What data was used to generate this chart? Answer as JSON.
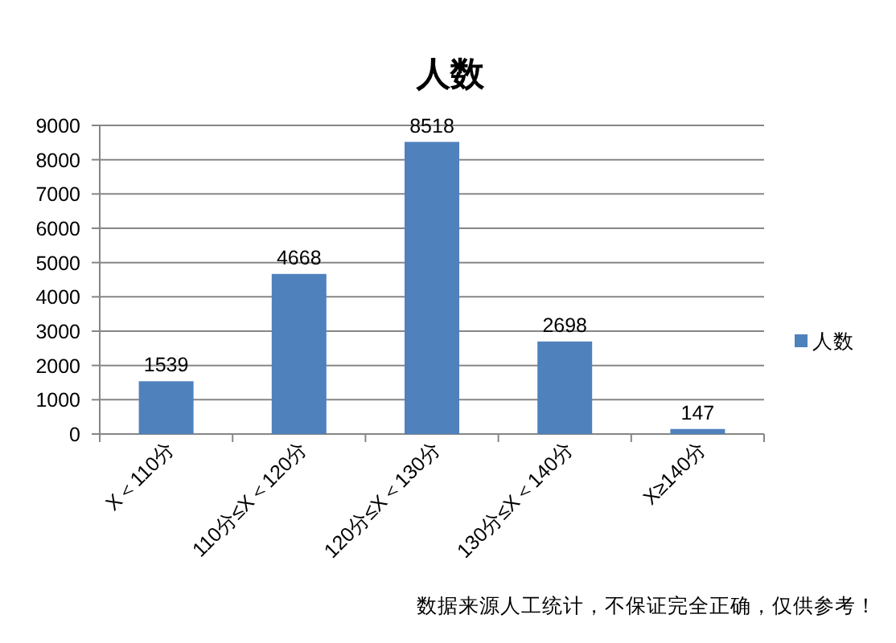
{
  "chart_data": {
    "type": "bar",
    "title": "人数",
    "categories": [
      "X＜110分",
      "110分≤X＜120分",
      "120分≤X＜130分",
      "130分≤X＜140分",
      "X≥140分"
    ],
    "series": [
      {
        "name": "人数",
        "color": "#4f81bd",
        "values": [
          1539,
          4668,
          8518,
          2698,
          147
        ]
      }
    ],
    "ylim": [
      0,
      9000
    ],
    "yticks": [
      0,
      1000,
      2000,
      3000,
      4000,
      5000,
      6000,
      7000,
      8000,
      9000
    ],
    "grid": "y",
    "legend": "right",
    "data_labels": true,
    "annotations": [
      "数据来源人工统计，不保证完全正确，仅供参考！"
    ]
  }
}
